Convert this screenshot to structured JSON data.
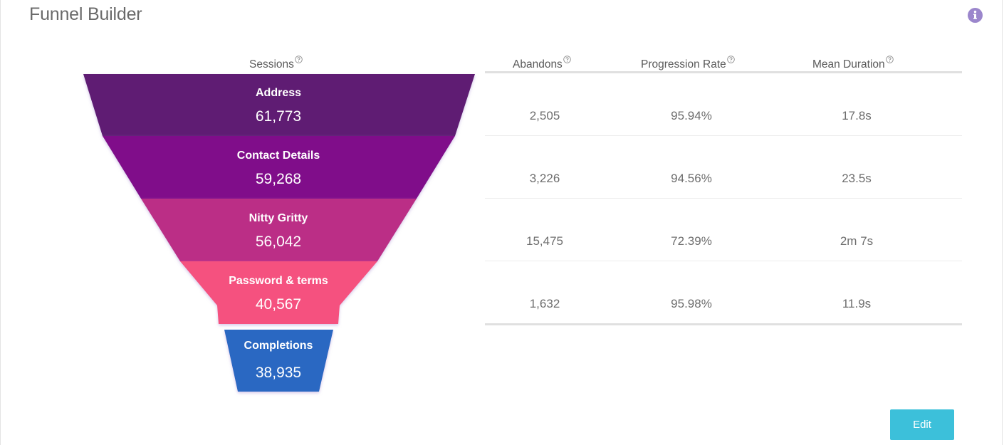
{
  "title": "Funnel Builder",
  "colors": {
    "accent_info": "#9b86cc",
    "edit_button": "#3cc0da",
    "stage_1": "#5e1b73",
    "stage_2": "#800a8a",
    "stage_3": "#bb2f86",
    "stage_4": "#f5517f",
    "stage_5": "#2a67c2"
  },
  "icons": {
    "info": "info-circle-icon",
    "help": "question-circle-icon"
  },
  "columns": {
    "sessions": "Sessions",
    "abandons": "Abandons",
    "progression_rate": "Progression Rate",
    "mean_duration": "Mean Duration"
  },
  "stages": [
    {
      "name": "Address",
      "sessions": "61,773"
    },
    {
      "name": "Contact Details",
      "sessions": "59,268"
    },
    {
      "name": "Nitty Gritty",
      "sessions": "56,042"
    },
    {
      "name": "Password & terms",
      "sessions": "40,567"
    },
    {
      "name": "Completions",
      "sessions": "38,935"
    }
  ],
  "rows": [
    {
      "abandons": "2,505",
      "progression_rate": "95.94%",
      "mean_duration": "17.8s"
    },
    {
      "abandons": "3,226",
      "progression_rate": "94.56%",
      "mean_duration": "23.5s"
    },
    {
      "abandons": "15,475",
      "progression_rate": "72.39%",
      "mean_duration": "2m 7s"
    },
    {
      "abandons": "1,632",
      "progression_rate": "95.98%",
      "mean_duration": "11.9s"
    }
  ],
  "edit_label": "Edit"
}
